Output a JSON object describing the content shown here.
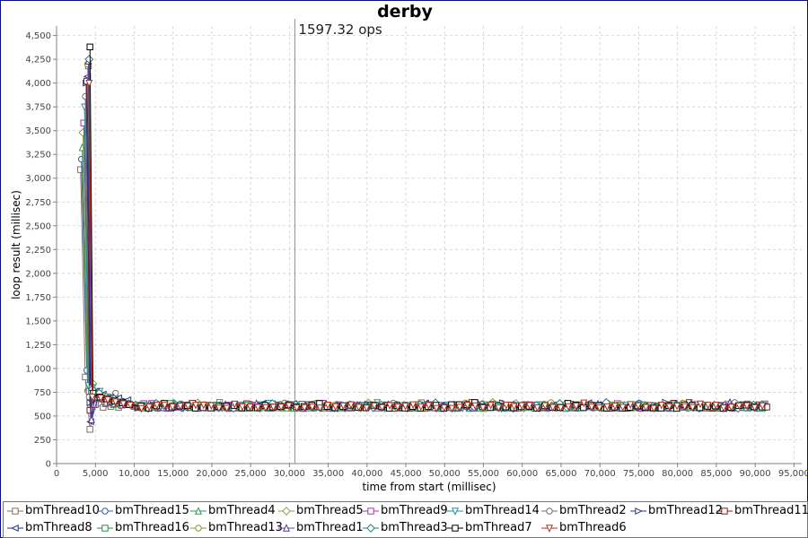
{
  "chart_data": {
    "type": "line",
    "title": "derby",
    "xlabel": "time from start (millisec)",
    "ylabel": "loop result (millisec)",
    "annotation": "1597.32 ops",
    "annotation_x": 30700,
    "xlim": [
      0,
      96000
    ],
    "ylim": [
      0,
      4600
    ],
    "x_ticks": [
      0,
      5000,
      10000,
      15000,
      20000,
      25000,
      30000,
      35000,
      40000,
      45000,
      50000,
      55000,
      60000,
      65000,
      70000,
      75000,
      80000,
      85000,
      90000,
      95000
    ],
    "x_tick_labels": [
      "0",
      "5,000",
      "10,000",
      "15,000",
      "20,000",
      "25,000",
      "30,000",
      "35,000",
      "40,000",
      "45,000",
      "50,000",
      "55,000",
      "60,000",
      "65,000",
      "70,000",
      "75,000",
      "80,000",
      "85,000",
      "90,000",
      "95,000"
    ],
    "y_ticks": [
      0,
      250,
      500,
      750,
      1000,
      1250,
      1500,
      1750,
      2000,
      2250,
      2500,
      2750,
      3000,
      3250,
      3500,
      3750,
      4000,
      4250,
      4500
    ],
    "y_tick_labels": [
      "0",
      "250",
      "500",
      "750",
      "1,000",
      "1,250",
      "1,500",
      "1,750",
      "2,000",
      "2,250",
      "2,500",
      "2,750",
      "3,000",
      "3,250",
      "3,500",
      "3,750",
      "4,000",
      "4,250",
      "4,500"
    ],
    "grid": true,
    "legend_position": "bottom",
    "steady_state_start": 10000,
    "steady_state_end": 91500,
    "steady_state_level": 600,
    "series": [
      {
        "name": "bmThread10",
        "color": "#8b6a5a",
        "marker": "square",
        "values": [
          [
            3100,
            3090
          ],
          [
            3700,
            910
          ],
          [
            4300,
            360
          ],
          [
            5000,
            620
          ],
          [
            6000,
            590
          ],
          [
            7000,
            600
          ],
          [
            8000,
            590
          ]
        ]
      },
      {
        "name": "bmThread15",
        "color": "#2a5fb0",
        "marker": "circle",
        "values": [
          [
            3200,
            3200
          ],
          [
            3900,
            980
          ],
          [
            4500,
            560
          ],
          [
            5200,
            700
          ],
          [
            6200,
            640
          ],
          [
            7200,
            630
          ],
          [
            8200,
            610
          ]
        ]
      },
      {
        "name": "bmThread4",
        "color": "#2a9a4a",
        "marker": "triangle-up",
        "values": [
          [
            3300,
            3320
          ],
          [
            4000,
            800
          ],
          [
            4600,
            600
          ],
          [
            5300,
            690
          ],
          [
            6300,
            630
          ],
          [
            7300,
            620
          ],
          [
            8300,
            615
          ]
        ]
      },
      {
        "name": "bmThread5",
        "color": "#8aa040",
        "marker": "diamond",
        "values": [
          [
            3400,
            3480
          ],
          [
            4100,
            760
          ],
          [
            4700,
            840
          ],
          [
            5400,
            720
          ],
          [
            6400,
            650
          ],
          [
            7400,
            640
          ],
          [
            8400,
            620
          ]
        ]
      },
      {
        "name": "bmThread9",
        "color": "#9a3aa0",
        "marker": "square",
        "values": [
          [
            3500,
            3580
          ],
          [
            4200,
            760
          ],
          [
            4800,
            620
          ],
          [
            5500,
            700
          ],
          [
            6500,
            640
          ],
          [
            7500,
            630
          ],
          [
            8500,
            615
          ]
        ]
      },
      {
        "name": "bmThread14",
        "color": "#2a8aa0",
        "marker": "triangle-down",
        "values": [
          [
            3600,
            3750
          ],
          [
            4100,
            820
          ],
          [
            4700,
            800
          ],
          [
            5600,
            760
          ],
          [
            6600,
            700
          ],
          [
            7600,
            660
          ],
          [
            8600,
            630
          ]
        ]
      },
      {
        "name": "bmThread2",
        "color": "#707070",
        "marker": "circle",
        "values": [
          [
            3700,
            3860
          ],
          [
            4200,
            700
          ],
          [
            4800,
            720
          ],
          [
            5700,
            680
          ],
          [
            6700,
            700
          ],
          [
            7600,
            740
          ],
          [
            8700,
            640
          ]
        ]
      },
      {
        "name": "bmThread12",
        "color": "#2a4070",
        "marker": "triangle-right",
        "values": [
          [
            3800,
            4000
          ],
          [
            4300,
            640
          ],
          [
            4900,
            700
          ],
          [
            5800,
            720
          ],
          [
            6800,
            690
          ],
          [
            7800,
            680
          ],
          [
            8800,
            660
          ]
        ]
      },
      {
        "name": "bmThread11",
        "color": "#7a2020",
        "marker": "square",
        "values": [
          [
            3900,
            4020
          ],
          [
            4300,
            560
          ],
          [
            5000,
            700
          ],
          [
            5900,
            680
          ],
          [
            6900,
            650
          ],
          [
            7900,
            640
          ],
          [
            8900,
            620
          ]
        ]
      },
      {
        "name": "bmThread8",
        "color": "#203080",
        "marker": "triangle-left",
        "values": [
          [
            4000,
            4070
          ],
          [
            4400,
            440
          ],
          [
            5100,
            760
          ],
          [
            6000,
            730
          ],
          [
            7000,
            700
          ],
          [
            8000,
            690
          ],
          [
            9200,
            670
          ]
        ]
      },
      {
        "name": "bmThread16",
        "color": "#209040",
        "marker": "square",
        "values": [
          [
            4100,
            4180
          ],
          [
            4500,
            760
          ],
          [
            5200,
            730
          ],
          [
            6100,
            700
          ],
          [
            7100,
            660
          ],
          [
            8100,
            640
          ],
          [
            9000,
            625
          ]
        ]
      },
      {
        "name": "bmThread13",
        "color": "#909030",
        "marker": "circle",
        "values": [
          [
            4000,
            4200
          ],
          [
            4600,
            800
          ],
          [
            5300,
            740
          ],
          [
            6200,
            710
          ],
          [
            7200,
            680
          ],
          [
            8200,
            650
          ],
          [
            9100,
            630
          ]
        ]
      },
      {
        "name": "bmThread1",
        "color": "#6030a0",
        "marker": "triangle-up",
        "values": [
          [
            4100,
            4230
          ],
          [
            4500,
            460
          ],
          [
            5400,
            720
          ],
          [
            6300,
            690
          ],
          [
            7300,
            670
          ],
          [
            8300,
            640
          ],
          [
            9200,
            625
          ]
        ]
      },
      {
        "name": "bmThread3",
        "color": "#207a7a",
        "marker": "diamond",
        "values": [
          [
            4200,
            4250
          ],
          [
            4600,
            780
          ],
          [
            5500,
            740
          ],
          [
            6400,
            700
          ],
          [
            7400,
            680
          ],
          [
            8400,
            650
          ],
          [
            9300,
            630
          ]
        ]
      },
      {
        "name": "bmThread7",
        "color": "#000000",
        "marker": "square",
        "values": [
          [
            4300,
            4380
          ],
          [
            4700,
            740
          ],
          [
            5600,
            700
          ],
          [
            6500,
            680
          ],
          [
            7500,
            660
          ],
          [
            8500,
            640
          ],
          [
            9400,
            620
          ]
        ]
      },
      {
        "name": "bmThread6",
        "color": "#b03020",
        "marker": "triangle-down",
        "values": [
          [
            4200,
            4000
          ],
          [
            4600,
            700
          ],
          [
            5700,
            690
          ],
          [
            6600,
            670
          ],
          [
            7600,
            650
          ],
          [
            8600,
            630
          ],
          [
            9500,
            615
          ]
        ]
      }
    ]
  }
}
